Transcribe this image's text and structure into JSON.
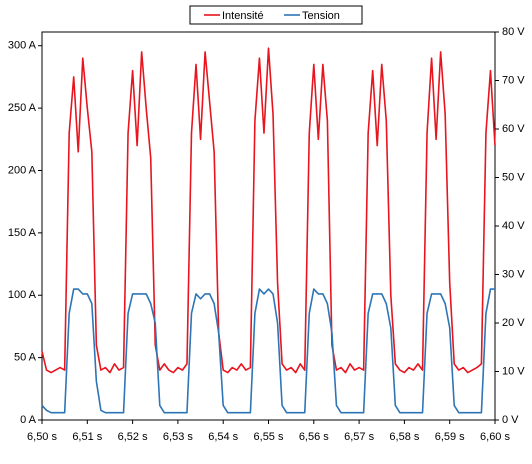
{
  "chart_data": {
    "type": "line",
    "x": [
      6.5,
      6.501,
      6.502,
      6.503,
      6.504,
      6.505,
      6.506,
      6.507,
      6.508,
      6.509,
      6.51,
      6.511,
      6.512,
      6.513,
      6.514,
      6.515,
      6.516,
      6.517,
      6.518,
      6.519,
      6.52,
      6.521,
      6.522,
      6.523,
      6.524,
      6.525,
      6.526,
      6.527,
      6.528,
      6.529,
      6.53,
      6.531,
      6.532,
      6.533,
      6.534,
      6.535,
      6.536,
      6.537,
      6.538,
      6.539,
      6.54,
      6.541,
      6.542,
      6.543,
      6.544,
      6.545,
      6.546,
      6.547,
      6.548,
      6.549,
      6.55,
      6.551,
      6.552,
      6.553,
      6.554,
      6.555,
      6.556,
      6.557,
      6.558,
      6.559,
      6.56,
      6.561,
      6.562,
      6.563,
      6.564,
      6.565,
      6.566,
      6.567,
      6.568,
      6.569,
      6.57,
      6.571,
      6.572,
      6.573,
      6.574,
      6.575,
      6.576,
      6.577,
      6.578,
      6.579,
      6.58,
      6.581,
      6.582,
      6.583,
      6.584,
      6.585,
      6.586,
      6.587,
      6.588,
      6.589,
      6.59,
      6.591,
      6.592,
      6.593,
      6.594,
      6.595,
      6.596,
      6.597,
      6.598,
      6.599,
      6.6
    ],
    "series": [
      {
        "name": "Intensité",
        "color": "#e8141e",
        "values": [
          55,
          40,
          38,
          40,
          42,
          40,
          230,
          275,
          215,
          290,
          250,
          215,
          60,
          40,
          42,
          38,
          45,
          40,
          42,
          230,
          280,
          220,
          295,
          250,
          210,
          60,
          40,
          45,
          40,
          38,
          42,
          40,
          45,
          230,
          285,
          225,
          295,
          255,
          215,
          70,
          40,
          38,
          42,
          40,
          45,
          40,
          42,
          240,
          290,
          230,
          298,
          245,
          110,
          45,
          40,
          42,
          38,
          45,
          40,
          230,
          285,
          225,
          285,
          240,
          60,
          40,
          42,
          38,
          45,
          40,
          42,
          40,
          230,
          280,
          220,
          285,
          240,
          100,
          45,
          40,
          38,
          42,
          40,
          45,
          40,
          230,
          290,
          225,
          295,
          245,
          110,
          45,
          40,
          42,
          38,
          40,
          42,
          45,
          230,
          280,
          220
        ]
      },
      {
        "name": "Tension",
        "color": "#2e75b6",
        "axis": "y2",
        "values": [
          3,
          2,
          1.5,
          1.5,
          1.5,
          1.5,
          22,
          27,
          27,
          26,
          26,
          24,
          8,
          2,
          1.5,
          1.5,
          1.5,
          1.5,
          1.5,
          22,
          26,
          26,
          26,
          26,
          24,
          20,
          3,
          1.5,
          1.5,
          1.5,
          1.5,
          1.5,
          1.5,
          22,
          26,
          25,
          26,
          26,
          24,
          18,
          3,
          1.5,
          1.5,
          1.5,
          1.5,
          1.5,
          1.5,
          22,
          27,
          26,
          27,
          26,
          20,
          3,
          1.5,
          1.5,
          1.5,
          1.5,
          1.5,
          22,
          27,
          26,
          26,
          24,
          18,
          3,
          1.5,
          1.5,
          1.5,
          1.5,
          1.5,
          1.5,
          22,
          26,
          26,
          26,
          24,
          19,
          3,
          1.5,
          1.5,
          1.5,
          1.5,
          1.5,
          1.5,
          22,
          26,
          26,
          26,
          24,
          19,
          3,
          1.5,
          1.5,
          1.5,
          1.5,
          1.5,
          1.5,
          22,
          27,
          27
        ]
      }
    ],
    "xlim": [
      6.5,
      6.6
    ],
    "xticks": [
      {
        "value": 6.5,
        "label": "6,50 s"
      },
      {
        "value": 6.51,
        "label": "6,51 s"
      },
      {
        "value": 6.52,
        "label": "6,52 s"
      },
      {
        "value": 6.53,
        "label": "6,53 s"
      },
      {
        "value": 6.54,
        "label": "6,54 s"
      },
      {
        "value": 6.55,
        "label": "6,55 s"
      },
      {
        "value": 6.56,
        "label": "6,56 s"
      },
      {
        "value": 6.57,
        "label": "6,57 s"
      },
      {
        "value": 6.58,
        "label": "6,58 s"
      },
      {
        "value": 6.59,
        "label": "6,59 s"
      },
      {
        "value": 6.6,
        "label": "6,60 s"
      }
    ],
    "ylim": [
      0,
      311
    ],
    "yticks": [
      {
        "value": 0,
        "label": "0 A"
      },
      {
        "value": 50,
        "label": "50 A"
      },
      {
        "value": 100,
        "label": "100 A"
      },
      {
        "value": 150,
        "label": "150 A"
      },
      {
        "value": 200,
        "label": "200 A"
      },
      {
        "value": 250,
        "label": "250 A"
      },
      {
        "value": 300,
        "label": "300 A"
      }
    ],
    "y2lim": [
      0,
      80
    ],
    "y2ticks": [
      {
        "value": 0,
        "label": "0 V"
      },
      {
        "value": 10,
        "label": "10 V"
      },
      {
        "value": 20,
        "label": "20 V"
      },
      {
        "value": 30,
        "label": "30 V"
      },
      {
        "value": 40,
        "label": "40 V"
      },
      {
        "value": 50,
        "label": "50 V"
      },
      {
        "value": 60,
        "label": "60 V"
      },
      {
        "value": 70,
        "label": "70 V"
      },
      {
        "value": 80,
        "label": "80 V"
      }
    ],
    "legend": "top"
  }
}
